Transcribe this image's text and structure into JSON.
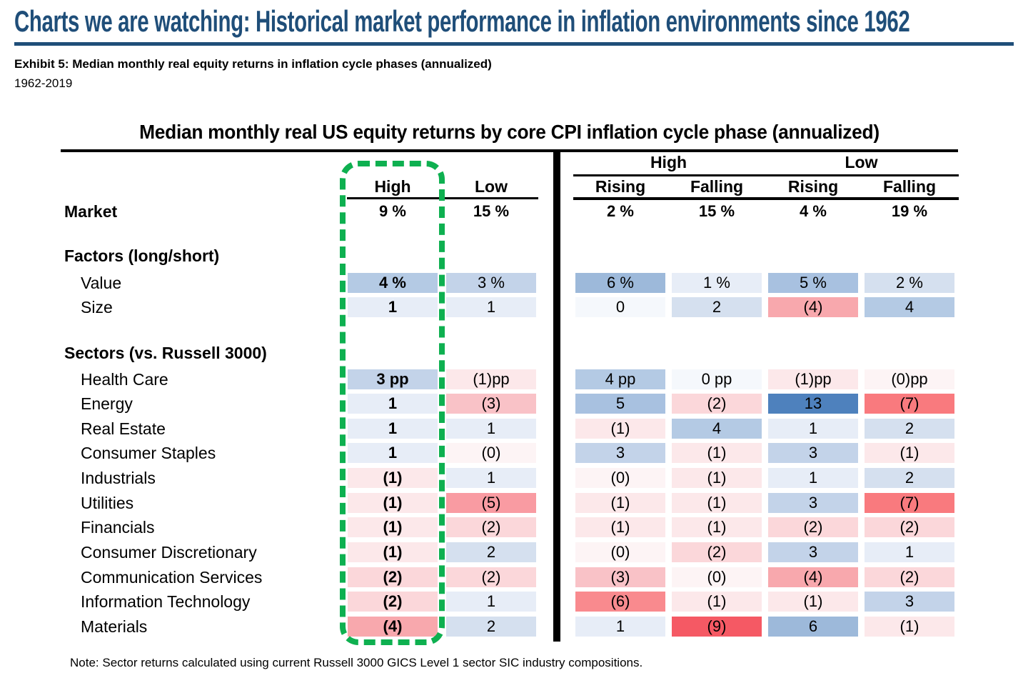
{
  "header": {
    "title": "Charts we are watching: Historical market performance in inflation environments since 1962",
    "exhibit_title": "Exhibit 5: Median monthly real equity returns in inflation cycle phases (annualized)",
    "period": "1962-2019"
  },
  "table": {
    "title": "Median monthly real US equity returns by core CPI inflation cycle phase (annualized)",
    "left_columns": [
      "High",
      "Low"
    ],
    "right_groups": [
      {
        "label": "High",
        "columns": [
          "Rising",
          "Falling"
        ]
      },
      {
        "label": "Low",
        "columns": [
          "Rising",
          "Falling"
        ]
      }
    ],
    "highlight": {
      "column": "High",
      "style": "green-dashed-box"
    },
    "rows": [
      {
        "kind": "market",
        "label": "Market",
        "values": [
          "9 %",
          "15 %",
          "2 %",
          "15 %",
          "4 %",
          "19 %"
        ],
        "fills": [
          "none",
          "none",
          "none",
          "none",
          "none",
          "none"
        ]
      },
      {
        "kind": "section",
        "label": "Factors (long/short)"
      },
      {
        "kind": "data",
        "label": "Value",
        "values": [
          "4 %",
          "3 %",
          "6 %",
          "1 %",
          "5 %",
          "2 %"
        ],
        "fills": [
          "b4",
          "b3",
          "b6",
          "b1",
          "b5",
          "b2"
        ]
      },
      {
        "kind": "data",
        "label": "Size",
        "values": [
          "1",
          "1",
          "0",
          "2",
          "(4)",
          "4"
        ],
        "fills": [
          "b1",
          "b1",
          "b0",
          "b2",
          "r4",
          "b4"
        ]
      },
      {
        "kind": "section",
        "label": "Sectors (vs. Russell 3000)"
      },
      {
        "kind": "data",
        "label": "Health Care",
        "values": [
          "3 pp",
          "(1)pp",
          "4 pp",
          "0 pp",
          "(1)pp",
          "(0)pp"
        ],
        "fills": [
          "b3",
          "r1",
          "b4",
          "b0",
          "r1",
          "r0"
        ]
      },
      {
        "kind": "data",
        "label": "Energy",
        "values": [
          "1",
          "(3)",
          "5",
          "(2)",
          "13",
          "(7)"
        ],
        "fills": [
          "b1",
          "r3",
          "b5",
          "r2",
          "b13",
          "r7"
        ]
      },
      {
        "kind": "data",
        "label": "Real Estate",
        "values": [
          "1",
          "1",
          "(1)",
          "4",
          "1",
          "2"
        ],
        "fills": [
          "b1",
          "b1",
          "r1",
          "b4",
          "b1",
          "b2"
        ]
      },
      {
        "kind": "data",
        "label": "Consumer Staples",
        "values": [
          "1",
          "(0)",
          "3",
          "(1)",
          "3",
          "(1)"
        ],
        "fills": [
          "b1",
          "r0",
          "b3",
          "r1",
          "b3",
          "r1"
        ]
      },
      {
        "kind": "data",
        "label": "Industrials",
        "values": [
          "(1)",
          "1",
          "(0)",
          "(1)",
          "1",
          "2"
        ],
        "fills": [
          "r1",
          "b1",
          "r0",
          "r1",
          "b1",
          "b2"
        ]
      },
      {
        "kind": "data",
        "label": "Utilities",
        "values": [
          "(1)",
          "(5)",
          "(1)",
          "(1)",
          "3",
          "(7)"
        ],
        "fills": [
          "r1",
          "r5",
          "r1",
          "r1",
          "b3",
          "r7"
        ]
      },
      {
        "kind": "data",
        "label": "Financials",
        "values": [
          "(1)",
          "(2)",
          "(1)",
          "(1)",
          "(2)",
          "(2)"
        ],
        "fills": [
          "r1",
          "r2",
          "r1",
          "r1",
          "r2",
          "r2"
        ]
      },
      {
        "kind": "data",
        "label": "Consumer Discretionary",
        "values": [
          "(1)",
          "2",
          "(0)",
          "(2)",
          "3",
          "1"
        ],
        "fills": [
          "r1",
          "b2",
          "r0",
          "r2",
          "b3",
          "b1"
        ]
      },
      {
        "kind": "data",
        "label": "Communication Services",
        "values": [
          "(2)",
          "(2)",
          "(3)",
          "(0)",
          "(4)",
          "(2)"
        ],
        "fills": [
          "r2",
          "r2",
          "r3",
          "r0",
          "r4",
          "r2"
        ]
      },
      {
        "kind": "data",
        "label": "Information Technology",
        "values": [
          "(2)",
          "1",
          "(6)",
          "(1)",
          "(1)",
          "3"
        ],
        "fills": [
          "r2",
          "b1",
          "r6",
          "r1",
          "r1",
          "b3"
        ]
      },
      {
        "kind": "data",
        "label": "Materials",
        "values": [
          "(4)",
          "2",
          "1",
          "(9)",
          "6",
          "(1)"
        ],
        "fills": [
          "r4",
          "b2",
          "b1",
          "r9",
          "b6",
          "r1"
        ]
      }
    ]
  },
  "footer": {
    "note": "Note: Sector returns calculated using current Russell 3000 GICS Level 1 sector SIC industry compositions."
  },
  "colors": {
    "navy": "#1f4e79",
    "highlight_green": "#0eb050",
    "cells": {
      "none": "transparent",
      "b13": "#4e81bd",
      "b6": "#9db9da",
      "b5": "#a8c1e0",
      "b4": "#b4cae4",
      "b3": "#c3d3e9",
      "b2": "#d5e0ef",
      "b1": "#e7edf7",
      "b0": "#f5f8fc",
      "r0": "#fdf4f5",
      "r1": "#fce8ea",
      "r2": "#fbd7da",
      "r3": "#f9c2c7",
      "r4": "#f8a8ad",
      "r5": "#f99ba2",
      "r6": "#f98a8e",
      "r7": "#f97a7e",
      "r9": "#f55964"
    }
  },
  "chart_data": {
    "type": "heatmap",
    "title": "Median monthly real US equity returns by core CPI inflation cycle phase (annualized)",
    "subtitle": "Exhibit 5: Median monthly real equity returns in inflation cycle phases (annualized), 1962-2019",
    "columns": [
      "High",
      "Low",
      "High Rising",
      "High Falling",
      "Low Rising",
      "Low Falling"
    ],
    "units": {
      "market_and_factors": "percent annualized",
      "sectors": "pp vs Russell 3000"
    },
    "rows": [
      {
        "group": "Market",
        "name": "Market",
        "values": [
          9,
          15,
          2,
          15,
          4,
          19
        ]
      },
      {
        "group": "Factors (long/short)",
        "name": "Value",
        "values": [
          4,
          3,
          6,
          1,
          5,
          2
        ]
      },
      {
        "group": "Factors (long/short)",
        "name": "Size",
        "values": [
          1,
          1,
          0,
          2,
          -4,
          4
        ]
      },
      {
        "group": "Sectors (vs. Russell 3000)",
        "name": "Health Care",
        "values": [
          3,
          -1,
          4,
          0,
          -1,
          0
        ]
      },
      {
        "group": "Sectors (vs. Russell 3000)",
        "name": "Energy",
        "values": [
          1,
          -3,
          5,
          -2,
          13,
          -7
        ]
      },
      {
        "group": "Sectors (vs. Russell 3000)",
        "name": "Real Estate",
        "values": [
          1,
          1,
          -1,
          4,
          1,
          2
        ]
      },
      {
        "group": "Sectors (vs. Russell 3000)",
        "name": "Consumer Staples",
        "values": [
          1,
          0,
          3,
          -1,
          3,
          -1
        ]
      },
      {
        "group": "Sectors (vs. Russell 3000)",
        "name": "Industrials",
        "values": [
          -1,
          1,
          0,
          -1,
          1,
          2
        ]
      },
      {
        "group": "Sectors (vs. Russell 3000)",
        "name": "Utilities",
        "values": [
          -1,
          -5,
          -1,
          -1,
          3,
          -7
        ]
      },
      {
        "group": "Sectors (vs. Russell 3000)",
        "name": "Financials",
        "values": [
          -1,
          -2,
          -1,
          -1,
          -2,
          -2
        ]
      },
      {
        "group": "Sectors (vs. Russell 3000)",
        "name": "Consumer Discretionary",
        "values": [
          -1,
          2,
          0,
          -2,
          3,
          1
        ]
      },
      {
        "group": "Sectors (vs. Russell 3000)",
        "name": "Communication Services",
        "values": [
          -2,
          -2,
          -3,
          0,
          -4,
          -2
        ]
      },
      {
        "group": "Sectors (vs. Russell 3000)",
        "name": "Information Technology",
        "values": [
          -2,
          1,
          -6,
          -1,
          -1,
          3
        ]
      },
      {
        "group": "Sectors (vs. Russell 3000)",
        "name": "Materials",
        "values": [
          -4,
          2,
          1,
          -9,
          6,
          -1
        ]
      }
    ],
    "legend": "Blue shading = positive returns (darker = higher); red/pink shading = negative returns in parentheses (darker = lower); green dashed box highlights the High inflation column"
  }
}
